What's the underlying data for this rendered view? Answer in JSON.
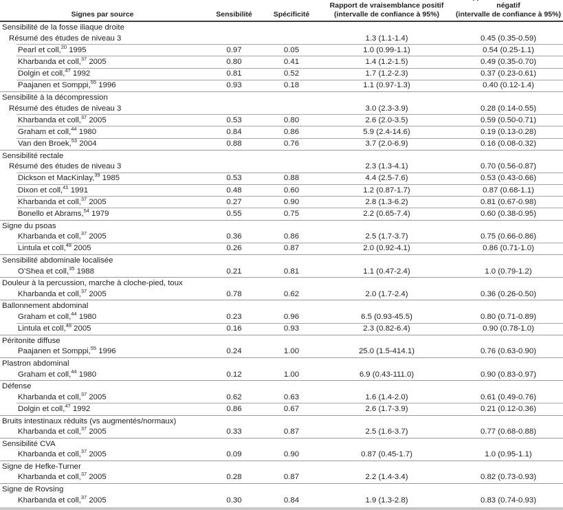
{
  "header": {
    "source": "Signes par source",
    "sensitivity": "Sensibilité",
    "specificity": "Spécificité",
    "lr_pos_line1": "Rapport de vraisemblance positif",
    "lr_pos_line2": "(intervalle de confiance à 95%)",
    "lr_neg_line1": "Rapport de vraisemblance négatif",
    "lr_neg_line2": "(intervalle de confiance à 95%)"
  },
  "colors": {
    "text": "#1f1f1f",
    "header_rule": "#3d3d3d",
    "row_rule": "#a6a6a6",
    "section_rule": "#9b9b9b",
    "bottom_rule": "#c8c8c8"
  },
  "sections": [
    {
      "title": "Sensibilité de la fosse iliaque droite",
      "rows": [
        {
          "study": "Résumé des études de niveau 3",
          "summary": true,
          "sens": "",
          "spec": "",
          "lr_pos": "1.3 (1.1-1.4)",
          "lr_neg": "0.45 (0.35-0.59)"
        },
        {
          "study": "Pearl et coll,",
          "ref": "20",
          "year": "1995",
          "sens": "0.97",
          "spec": "0.05",
          "lr_pos": "1.0 (0.99-1.1)",
          "lr_neg": "0.54 (0.25-1.1)"
        },
        {
          "study": "Kharbanda et coll,",
          "ref": "37",
          "year": "2005",
          "sens": "0.80",
          "spec": "0.41",
          "lr_pos": "1.4 (1.2-1.5)",
          "lr_neg": "0.49 (0.35-0.70)"
        },
        {
          "study": "Dolgin et coll,",
          "ref": "47",
          "year": "1992",
          "sens": "0.81",
          "spec": "0.52",
          "lr_pos": "1.7 (1.2-2.3)",
          "lr_neg": "0.37 (0.23-0.61)"
        },
        {
          "study": "Paajanen et Somppi,",
          "ref": "55",
          "year": "1996",
          "sens": "0.93",
          "spec": "0.18",
          "lr_pos": "1.1 (0.97-1.3)",
          "lr_neg": "0.40 (0.12-1.4)"
        }
      ]
    },
    {
      "title": "Sensibilité à la décompression",
      "rows": [
        {
          "study": "Résumé des études de niveau 3",
          "summary": true,
          "sens": "",
          "spec": "",
          "lr_pos": "3.0 (2.3-3.9)",
          "lr_neg": "0.28 (0.14-0.55)"
        },
        {
          "study": "Kharbanda et coll,",
          "ref": "37",
          "year": "2005",
          "sens": "0.53",
          "spec": "0.80",
          "lr_pos": "2.6 (2.0-3.5)",
          "lr_neg": "0.59 (0.50-0.71)"
        },
        {
          "study": "Graham et coll,",
          "ref": "44",
          "year": "1980",
          "sens": "0.84",
          "spec": "0.86",
          "lr_pos": "5.9 (2.4-14.6)",
          "lr_neg": "0.19 (0.13-0.28)"
        },
        {
          "study": "Van den Broek,",
          "ref": "53",
          "year": "2004",
          "sens": "0.88",
          "spec": "0.76",
          "lr_pos": "3.7 (2.0-6.9)",
          "lr_neg": "0.16 (0.08-0.32)"
        }
      ]
    },
    {
      "title": "Sensibilité rectale",
      "rows": [
        {
          "study": "Résumé des études de niveau 3",
          "summary": true,
          "sens": "",
          "spec": "",
          "lr_pos": "2.3 (1.3-4.1)",
          "lr_neg": "0.70 (0.56-0.87)"
        },
        {
          "study": "Dickson et MacKinlay,",
          "ref": "39",
          "year": "1985",
          "sens": "0.53",
          "spec": "0.88",
          "lr_pos": "4.4 (2.5-7.6)",
          "lr_neg": "0.53 (0.43-0.66)"
        },
        {
          "study": "Dixon et coll,",
          "ref": "41",
          "year": "1991",
          "sens": "0.48",
          "spec": "0.60",
          "lr_pos": "1.2 (0.87-1.7)",
          "lr_neg": "0.87 (0.68-1.1)"
        },
        {
          "study": "Kharbanda et coll,",
          "ref": "37",
          "year": "2005",
          "sens": "0.27",
          "spec": "0.90",
          "lr_pos": "2.8 (1.3-6.2)",
          "lr_neg": "0.81 (0.67-0.98)"
        },
        {
          "study": "Bonello et Abrams,",
          "ref": "54",
          "year": "1979",
          "sens": "0.55",
          "spec": "0.75",
          "lr_pos": "2.2 (0.65-7.4)",
          "lr_neg": "0.60 (0.38-0.95)"
        }
      ]
    },
    {
      "title": "Signe du psoas",
      "rows": [
        {
          "study": "Kharbanda et coll,",
          "ref": "37",
          "year": "2005",
          "sens": "0.36",
          "spec": "0.86",
          "lr_pos": "2.5 (1.7-3.7)",
          "lr_neg": "0.75 (0.66-0.86)"
        },
        {
          "study": "Lintula et coll,",
          "ref": "48",
          "year": "2005",
          "sens": "0.26",
          "spec": "0.87",
          "lr_pos": "2.0 (0.92-4.1)",
          "lr_neg": "0.86 (0.71-1.0)"
        }
      ]
    },
    {
      "title": "Sensibilité abdominale localisée",
      "rows": [
        {
          "study": "O’Shea et coll,",
          "ref": "35",
          "year": "1988",
          "sens": "0.21",
          "spec": "0.81",
          "lr_pos": "1.1 (0.47-2.4)",
          "lr_neg": "1.0 (0.79-1.2)"
        }
      ]
    },
    {
      "title": "Douleur à la percussion, marche à cloche-pied, toux",
      "rows": [
        {
          "study": "Kharbanda et coll,",
          "ref": "37",
          "year": "2005",
          "sens": "0.78",
          "spec": "0.62",
          "lr_pos": "2.0 (1.7-2.4)",
          "lr_neg": "0.36 (0.26-0.50)"
        }
      ]
    },
    {
      "title": "Ballonnement abdominal",
      "rows": [
        {
          "study": "Graham et coll,",
          "ref": "44",
          "year": "1980",
          "sens": "0.23",
          "spec": "0.96",
          "lr_pos": "6.5 (0.93-45.5)",
          "lr_neg": "0.80 (0.71-0.89)"
        },
        {
          "study": "Lintula et coll,",
          "ref": "48",
          "year": "2005",
          "sens": "0.16",
          "spec": "0.93",
          "lr_pos": "2.3 (0.82-6.4)",
          "lr_neg": "0.90 (0.78-1.0)"
        }
      ]
    },
    {
      "title": "Péritonite diffuse",
      "rows": [
        {
          "study": "Paajanen et Somppi,",
          "ref": "55",
          "year": "1996",
          "sens": "0.24",
          "spec": "1.00",
          "lr_pos": "25.0 (1.5-414.1)",
          "lr_neg": "0.76 (0.63-0.90)"
        }
      ]
    },
    {
      "title": "Plastron abdominal",
      "rows": [
        {
          "study": "Graham et coll,",
          "ref": "44",
          "year": "1980",
          "sens": "0.12",
          "spec": "1.00",
          "lr_pos": "6.9 (0.43-111.0)",
          "lr_neg": "0.90 (0.83-0.97)"
        }
      ]
    },
    {
      "title": "Défense",
      "rows": [
        {
          "study": "Kharbanda et coll,",
          "ref": "37",
          "year": "2005",
          "sens": "0.62",
          "spec": "0.63",
          "lr_pos": "1.6 (1.4-2.0)",
          "lr_neg": "0.61 (0.49-0.76)"
        },
        {
          "study": "Dolgin et coll,",
          "ref": "47",
          "year": "1992",
          "sens": "0.86",
          "spec": "0.67",
          "lr_pos": "2.6 (1.7-3.9)",
          "lr_neg": "0.21 (0.12-0.36)"
        }
      ]
    },
    {
      "title": "Bruits intestinaux réduits (vs augmentés/normaux)",
      "rows": [
        {
          "study": "Kharbanda et coll,",
          "ref": "37",
          "year": "2005",
          "sens": "0.33",
          "spec": "0.87",
          "lr_pos": "2.5 (1.6-3.7)",
          "lr_neg": "0.77 (0.68-0.88)"
        }
      ]
    },
    {
      "title": "Sensibilité CVA",
      "rows": [
        {
          "study": "Kharbanda et coll,",
          "ref": "37",
          "year": "2005",
          "sens": "0.09",
          "spec": "0.90",
          "lr_pos": "0.87 (0.45-1.7)",
          "lr_neg": "1.0 (0.95-1.1)"
        }
      ]
    },
    {
      "title": "Signe de Hefke-Turner",
      "rows": [
        {
          "study": "Kharbanda et coll,",
          "ref": "37",
          "year": "2005",
          "sens": "0.28",
          "spec": "0.87",
          "lr_pos": "2.2 (1.4-3.4)",
          "lr_neg": "0.82 (0.73-0.93)"
        }
      ]
    },
    {
      "title": "Signe de Rovsing",
      "rows": [
        {
          "study": "Kharbanda et coll,",
          "ref": "37",
          "year": "2005",
          "sens": "0.30",
          "spec": "0.84",
          "lr_pos": "1.9 (1.3-2.8)",
          "lr_neg": "0.83 (0.74-0.93)"
        }
      ]
    }
  ]
}
